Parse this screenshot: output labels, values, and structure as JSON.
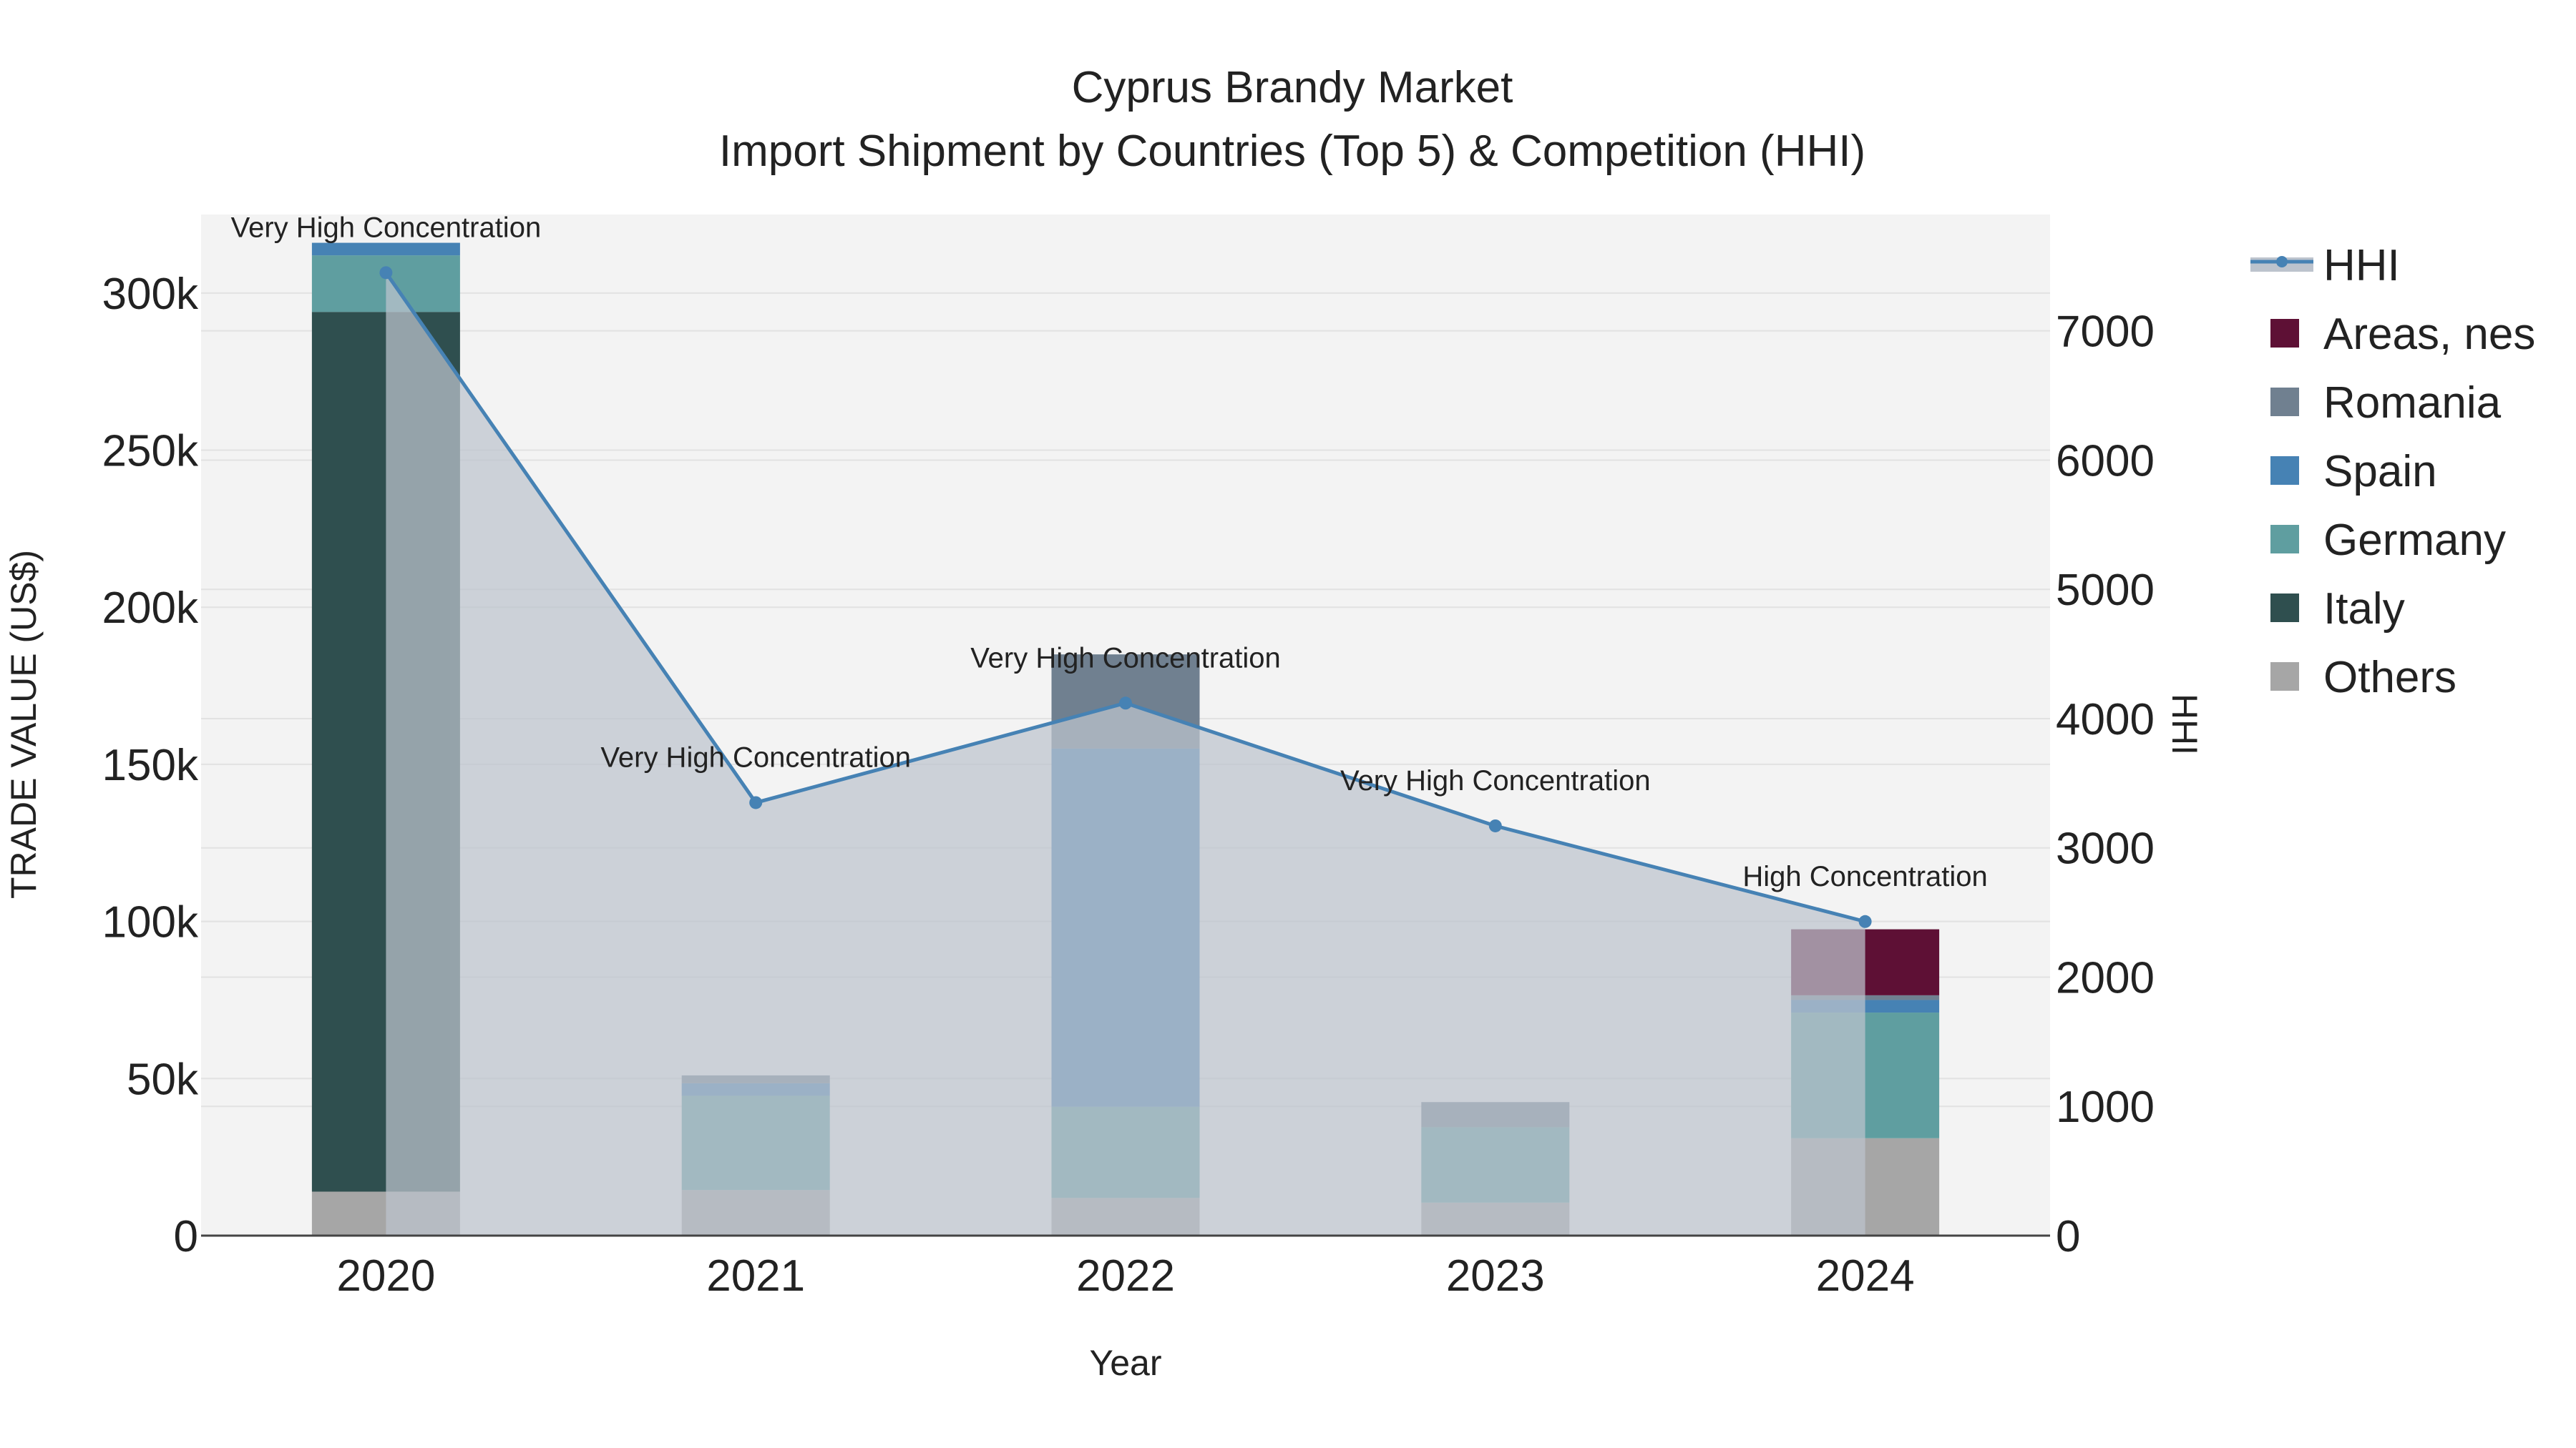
{
  "chart_data": {
    "type": "bar",
    "title": "Cyprus Brandy Market",
    "subtitle": "Import Shipment by Countries (Top 5) & Competition (HHI)",
    "xlabel": "Year",
    "ylabel": "TRADE VALUE (US$)",
    "y2label": "HHI",
    "categories": [
      "2020",
      "2021",
      "2022",
      "2023",
      "2024"
    ],
    "ylim": [
      0,
      325000
    ],
    "y_ticks": [
      0,
      50000,
      100000,
      150000,
      200000,
      250000,
      300000
    ],
    "y_tick_labels": [
      "0",
      "50k",
      "100k",
      "150k",
      "200k",
      "250k",
      "300k"
    ],
    "y2lim": [
      0,
      7900
    ],
    "y2_ticks": [
      0,
      1000,
      2000,
      3000,
      4000,
      5000,
      6000,
      7000
    ],
    "y2_tick_labels": [
      "0",
      "1000",
      "2000",
      "3000",
      "4000",
      "5000",
      "6000",
      "7000"
    ],
    "grid": true,
    "legend_position": "right",
    "series": [
      {
        "name": "Others",
        "color": "#a6a6a6",
        "values": [
          14000,
          14500,
          12000,
          10500,
          31000
        ]
      },
      {
        "name": "Italy",
        "color": "#2f4f4f",
        "values": [
          280000,
          0,
          0,
          0,
          0
        ]
      },
      {
        "name": "Germany",
        "color": "#5f9ea0",
        "values": [
          18000,
          30000,
          29000,
          24000,
          40000
        ]
      },
      {
        "name": "Spain",
        "color": "#4682b4",
        "values": [
          4000,
          4000,
          114000,
          0,
          4000
        ]
      },
      {
        "name": "Romania",
        "color": "#708090",
        "values": [
          0,
          2500,
          30000,
          8000,
          1500
        ]
      },
      {
        "name": "Areas, nes",
        "color": "#5e1035",
        "values": [
          0,
          0,
          0,
          0,
          21000
        ]
      }
    ],
    "hhi": {
      "name": "HHI",
      "color": "#4682b4",
      "fill_color": "#bcc3cd",
      "values": [
        7450,
        3350,
        4120,
        3170,
        2430
      ],
      "labels": [
        "Very High Concentration",
        "Very High Concentration",
        "Very High Concentration",
        "Very High Concentration",
        "High Concentration"
      ]
    }
  }
}
